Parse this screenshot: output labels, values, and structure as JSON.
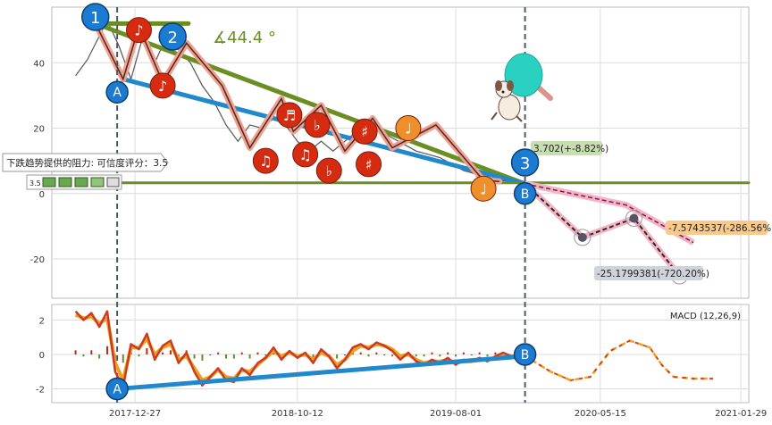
{
  "chart_data": {
    "type": "line",
    "x_tick_labels": [
      "2017-12-27",
      "2018-10-12",
      "2019-08-01",
      "2020-05-15",
      "2021-01-29"
    ],
    "price_panel": {
      "ylim": [
        -32,
        57
      ],
      "y_ticks": [
        40,
        20,
        0,
        -20
      ],
      "price_series": [
        [
          0,
          36
        ],
        [
          6,
          41
        ],
        [
          11,
          47
        ],
        [
          16,
          53
        ],
        [
          22,
          45
        ],
        [
          28,
          35
        ],
        [
          34,
          48
        ],
        [
          40,
          40
        ],
        [
          46,
          48
        ],
        [
          52,
          44
        ],
        [
          58,
          40
        ],
        [
          64,
          33
        ],
        [
          70,
          28
        ],
        [
          76,
          21
        ],
        [
          82,
          16
        ],
        [
          88,
          21
        ],
        [
          94,
          20
        ],
        [
          100,
          23
        ],
        [
          106,
          21
        ],
        [
          112,
          16
        ],
        [
          118,
          13
        ],
        [
          124,
          16
        ],
        [
          130,
          13
        ],
        [
          136,
          16
        ],
        [
          142,
          19
        ],
        [
          148,
          21
        ],
        [
          154,
          19
        ],
        [
          160,
          17
        ],
        [
          166,
          15
        ],
        [
          172,
          13
        ],
        [
          178,
          12
        ],
        [
          184,
          11
        ],
        [
          190,
          9
        ],
        [
          196,
          7
        ],
        [
          202,
          6
        ],
        [
          208,
          5
        ],
        [
          214,
          4
        ],
        [
          220,
          3.7
        ]
      ],
      "zigzag_points": [
        [
          10,
          52
        ],
        [
          24,
          35
        ],
        [
          32,
          51
        ],
        [
          44,
          34
        ],
        [
          56,
          46
        ],
        [
          74,
          33
        ],
        [
          88,
          14
        ],
        [
          104,
          29
        ],
        [
          110,
          19
        ],
        [
          124,
          27
        ],
        [
          136,
          13
        ],
        [
          150,
          23
        ],
        [
          160,
          14
        ],
        [
          182,
          21
        ],
        [
          206,
          4
        ],
        [
          214,
          3.7
        ]
      ],
      "note_markers": [
        {
          "id": 1,
          "x": 32,
          "y": 50,
          "symbol": "♪",
          "color": "#d52b10"
        },
        {
          "id": 2,
          "x": 44,
          "y": 33,
          "symbol": "♪",
          "color": "#d52b10"
        },
        {
          "id": 3,
          "x": 96,
          "y": 10,
          "symbol": "♫",
          "color": "#d52b10"
        },
        {
          "id": 4,
          "x": 108,
          "y": 24,
          "symbol": "♬",
          "color": "#d52b10"
        },
        {
          "id": 5,
          "x": 116,
          "y": 12,
          "symbol": "♫",
          "color": "#d52b10"
        },
        {
          "id": 6,
          "x": 122,
          "y": 21,
          "symbol": "♭",
          "color": "#d52b10"
        },
        {
          "id": 7,
          "x": 128,
          "y": 7,
          "symbol": "♭",
          "color": "#d52b10"
        },
        {
          "id": 8,
          "x": 146,
          "y": 19,
          "symbol": "♯",
          "color": "#d52b10"
        },
        {
          "id": 9,
          "x": 148,
          "y": 9,
          "symbol": "♯",
          "color": "#d52b10"
        },
        {
          "id": 10,
          "x": 168,
          "y": 20,
          "symbol": "♩",
          "color": "#ee8f2a"
        },
        {
          "id": 11,
          "x": 206,
          "y": 1.5,
          "symbol": "♩",
          "color": "#ee8f2a"
        }
      ],
      "trendlines": [
        {
          "name": "resistance",
          "color": "#6b8e23",
          "from": [
            10,
            52
          ],
          "to": [
            227,
            3.0
          ]
        },
        {
          "name": "support",
          "color": "#2288cc",
          "from": [
            24,
            35
          ],
          "to": [
            227,
            3.0
          ]
        },
        {
          "name": "horizontal",
          "color": "#6b8e23",
          "from": [
            -100,
            3.3
          ],
          "to": [
            400,
            3.3
          ]
        },
        {
          "name": "top-flat",
          "color": "#6b8e23",
          "from": [
            10,
            52
          ],
          "to": [
            57,
            52
          ]
        }
      ],
      "circle_labels": [
        {
          "text": "1",
          "x": 10,
          "y": 54
        },
        {
          "text": "2",
          "x": 49,
          "y": 48
        },
        {
          "text": "3",
          "x": 227,
          "y": 9.5
        },
        {
          "text": "A",
          "x": 21,
          "y": 31
        },
        {
          "text": "B",
          "x": 227,
          "y": 0
        }
      ],
      "angle_label": "∡44.4 °",
      "vertical_markers": [
        21,
        227
      ],
      "projection_points": [
        {
          "x": 256,
          "y": -13.4
        },
        {
          "x": 282,
          "y": -7.57
        },
        {
          "x": 305,
          "y": -25.18
        }
      ],
      "annotations": [
        {
          "text": "3.702(+-8.82%)"
        },
        {
          "text": "-7.5743537(-286.56%)"
        },
        {
          "text": "-25.1799381(-720.20%)"
        }
      ],
      "resistance_note": "下跌趋势提供的阻力: 可信度评分：3.5",
      "resistance_score": "3.5"
    },
    "macd_panel": {
      "label": "MACD (12,26,9)",
      "ylim": [
        -2.8,
        2.9
      ],
      "y_ticks": [
        2,
        0,
        -2
      ],
      "macd_line": [
        [
          0,
          2.5
        ],
        [
          4,
          2.0
        ],
        [
          8,
          2.4
        ],
        [
          12,
          1.6
        ],
        [
          16,
          2.5
        ],
        [
          20,
          -1.0
        ],
        [
          24,
          -1.9
        ],
        [
          28,
          0.6
        ],
        [
          32,
          0.3
        ],
        [
          36,
          1.2
        ],
        [
          40,
          -0.3
        ],
        [
          44,
          0.5
        ],
        [
          48,
          0.8
        ],
        [
          52,
          -0.5
        ],
        [
          56,
          0.1
        ],
        [
          60,
          -1.0
        ],
        [
          64,
          -1.8
        ],
        [
          68,
          -1.3
        ],
        [
          72,
          -0.8
        ],
        [
          76,
          -1.5
        ],
        [
          80,
          -1.6
        ],
        [
          84,
          -0.8
        ],
        [
          88,
          -1.2
        ],
        [
          92,
          -0.5
        ],
        [
          96,
          -0.2
        ],
        [
          100,
          0.4
        ],
        [
          104,
          -0.3
        ],
        [
          108,
          0.2
        ],
        [
          112,
          -0.2
        ],
        [
          116,
          0.1
        ],
        [
          120,
          -0.5
        ],
        [
          124,
          0.3
        ],
        [
          128,
          -0.1
        ],
        [
          132,
          -0.8
        ],
        [
          136,
          -0.3
        ],
        [
          140,
          0.4
        ],
        [
          144,
          0.6
        ],
        [
          148,
          0.3
        ],
        [
          152,
          0.7
        ],
        [
          156,
          0.5
        ],
        [
          160,
          0.2
        ],
        [
          164,
          -0.3
        ],
        [
          168,
          0.1
        ],
        [
          172,
          -0.4
        ],
        [
          176,
          -0.6
        ],
        [
          180,
          -0.3
        ],
        [
          184,
          -0.5
        ],
        [
          188,
          -0.2
        ],
        [
          192,
          -0.6
        ],
        [
          196,
          -0.3
        ],
        [
          200,
          -0.4
        ],
        [
          204,
          -0.2
        ],
        [
          208,
          -0.4
        ],
        [
          212,
          -0.1
        ],
        [
          216,
          0.1
        ],
        [
          220,
          -0.1
        ],
        [
          224,
          -0.1
        ]
      ],
      "signal_line": [
        [
          0,
          2.3
        ],
        [
          4,
          2.1
        ],
        [
          8,
          2.2
        ],
        [
          12,
          1.8
        ],
        [
          16,
          2.1
        ],
        [
          20,
          -0.5
        ],
        [
          24,
          -1.5
        ],
        [
          28,
          0.4
        ],
        [
          32,
          0.4
        ],
        [
          36,
          0.9
        ],
        [
          40,
          0.0
        ],
        [
          44,
          0.4
        ],
        [
          48,
          0.6
        ],
        [
          52,
          -0.3
        ],
        [
          56,
          -0.1
        ],
        [
          60,
          -0.8
        ],
        [
          64,
          -1.5
        ],
        [
          68,
          -1.3
        ],
        [
          72,
          -0.9
        ],
        [
          76,
          -1.3
        ],
        [
          80,
          -1.4
        ],
        [
          84,
          -0.9
        ],
        [
          88,
          -1.0
        ],
        [
          92,
          -0.6
        ],
        [
          96,
          -0.2
        ],
        [
          100,
          0.2
        ],
        [
          104,
          -0.1
        ],
        [
          108,
          0.1
        ],
        [
          112,
          -0.1
        ],
        [
          116,
          0.0
        ],
        [
          120,
          -0.3
        ],
        [
          124,
          0.1
        ],
        [
          128,
          -0.1
        ],
        [
          132,
          -0.6
        ],
        [
          136,
          -0.3
        ],
        [
          140,
          0.2
        ],
        [
          144,
          0.5
        ],
        [
          148,
          0.4
        ],
        [
          152,
          0.6
        ],
        [
          156,
          0.5
        ],
        [
          160,
          0.3
        ],
        [
          164,
          -0.1
        ],
        [
          168,
          0.0
        ],
        [
          172,
          -0.3
        ],
        [
          176,
          -0.5
        ],
        [
          180,
          -0.4
        ],
        [
          184,
          -0.4
        ],
        [
          188,
          -0.3
        ],
        [
          192,
          -0.5
        ],
        [
          196,
          -0.4
        ],
        [
          200,
          -0.4
        ],
        [
          204,
          -0.3
        ],
        [
          208,
          -0.3
        ],
        [
          212,
          -0.2
        ],
        [
          216,
          0.0
        ],
        [
          220,
          -0.1
        ],
        [
          224,
          -0.1
        ]
      ],
      "projection_line": [
        [
          230,
          -0.3
        ],
        [
          240,
          -1.0
        ],
        [
          250,
          -1.5
        ],
        [
          260,
          -1.3
        ],
        [
          270,
          0.2
        ],
        [
          280,
          0.8
        ],
        [
          290,
          0.4
        ],
        [
          296,
          -0.6
        ],
        [
          302,
          -1.3
        ],
        [
          312,
          -1.4
        ],
        [
          322,
          -1.4
        ]
      ],
      "trendline": {
        "from": [
          21,
          -2.0
        ],
        "to": [
          227,
          -0.1
        ]
      },
      "circle_labels": [
        {
          "text": "A",
          "x": 21,
          "y": -2.0
        },
        {
          "text": "B",
          "x": 227,
          "y": 0
        }
      ],
      "vertical_markers": [
        21,
        227
      ]
    }
  },
  "colors": {
    "grid": "#dcdcdc",
    "axis_text": "#333333",
    "price": "#555555",
    "zigzag_fill": "#f0a090",
    "zigzag_line": "#4a2a20",
    "resistance": "#6b8e23",
    "support": "#2288cc",
    "circle_blue": "#1a7bd0",
    "macd": "#cc3a22",
    "signal": "#f0a020",
    "projection": "#d63a1c",
    "pink_band": "#f4b4c4",
    "dark_dash": "#2a2a2a",
    "marker_dashed": "#4a5a6a",
    "label_green_bg": "#c7dfb0",
    "label_orange_bg": "#f7c98a",
    "label_gray_bg": "#cfd4da"
  },
  "icons": {
    "paddle": "paddle-icon",
    "dog": "dog-icon",
    "star_rating": "rating-icons"
  }
}
